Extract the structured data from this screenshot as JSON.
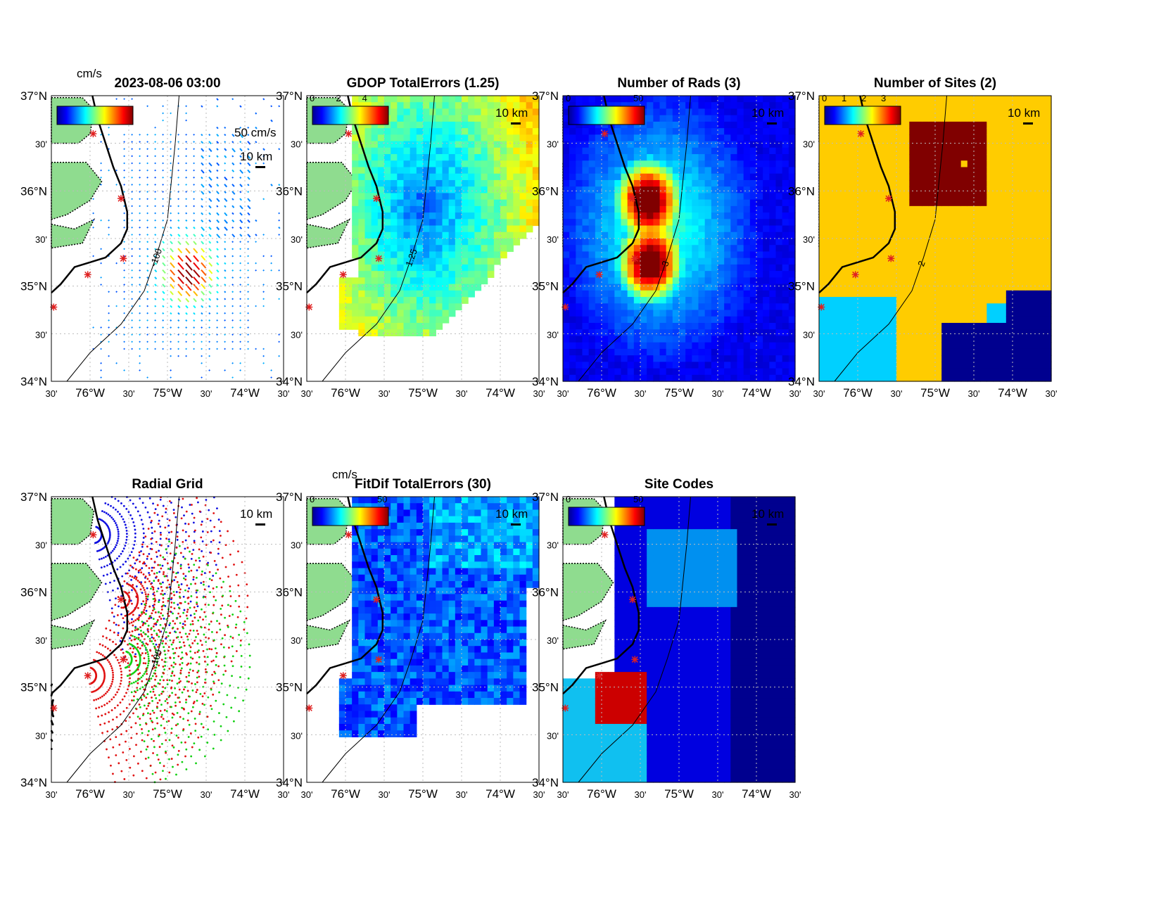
{
  "figure": {
    "coastline_color": "#000000",
    "land_color": "#8fdc8f",
    "site_marker_color": "#e02020",
    "grid_color": "#bbbbbb"
  },
  "axes_labels": {
    "lat": [
      "37°N",
      "30'",
      "36°N",
      "30'",
      "35°N",
      "30'",
      "34°N"
    ],
    "lon": [
      "30'",
      "76°W",
      "30'",
      "75°W",
      "30'",
      "74°W",
      "30'"
    ]
  },
  "panels": [
    {
      "id": "total-vectors",
      "title": "2023-08-06 03:00",
      "colorbar_unit": "cm/s",
      "colorbar_ticks": [],
      "scale_vector_label": "50 cm/s",
      "scale_bar_label": "10 km",
      "contour_label": "-100"
    },
    {
      "id": "gdop",
      "title": "GDOP TotalErrors (1.25)",
      "colorbar_unit": "",
      "colorbar_ticks": [
        "0",
        "2",
        "4"
      ],
      "scale_bar_label": "10 km",
      "contour_label": "1.25",
      "colormap": "jet"
    },
    {
      "id": "nrads",
      "title": "Number of Rads (3)",
      "colorbar_unit": "",
      "colorbar_ticks": [
        "0",
        "50"
      ],
      "scale_bar_label": "10 km",
      "contour_label": "3",
      "colormap": "jet"
    },
    {
      "id": "nsites",
      "title": "Number of Sites (2)",
      "colorbar_unit": "",
      "colorbar_ticks": [
        "0",
        "1",
        "2",
        "3"
      ],
      "scale_bar_label": "10 km",
      "contour_label": "2",
      "colormap": "jet"
    },
    {
      "id": "radial-grid",
      "title": "Radial Grid",
      "colorbar_unit": "",
      "colorbar_ticks": [],
      "scale_bar_label": "10 km",
      "contour_label": "-100",
      "site_colors": [
        "#1010e0",
        "#e01010",
        "#10d010",
        "#e01010",
        "#000000"
      ]
    },
    {
      "id": "fitdif",
      "title": "FitDif TotalErrors (30)",
      "colorbar_unit": "cm/s",
      "colorbar_ticks": [
        "0",
        "50"
      ],
      "scale_bar_label": "10 km",
      "colormap": "jet"
    },
    {
      "id": "site-codes",
      "title": "Site Codes",
      "colorbar_unit": "",
      "colorbar_ticks": [
        "0",
        "50"
      ],
      "scale_bar_label": "10 km",
      "colormap": "jet"
    }
  ]
}
